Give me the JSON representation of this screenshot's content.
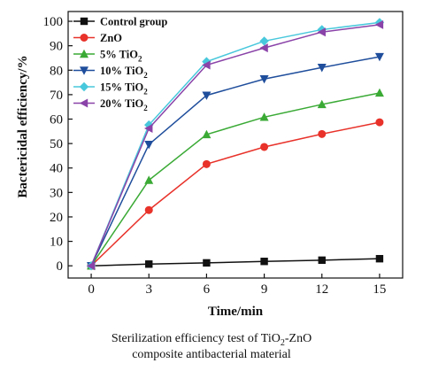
{
  "chart_data": {
    "type": "line",
    "xlabel": "Time/min",
    "ylabel": "Bactericidal efficiency/%",
    "xlim": [
      -1.2,
      16.2
    ],
    "ylim": [
      -5,
      104
    ],
    "xticks": [
      0,
      3,
      6,
      9,
      12,
      15
    ],
    "yticks": [
      0,
      10,
      20,
      30,
      40,
      50,
      60,
      70,
      80,
      90,
      100
    ],
    "grid": false,
    "legend": "top-left",
    "x": [
      0,
      3,
      6,
      9,
      12,
      15
    ],
    "series": [
      {
        "name": "Control group",
        "color": "#111111",
        "marker": "square",
        "values": [
          0,
          0.7,
          1.2,
          1.8,
          2.3,
          2.9
        ]
      },
      {
        "name": "ZnO",
        "color": "#e8322a",
        "marker": "circle",
        "values": [
          0,
          22.8,
          41.6,
          48.6,
          53.9,
          58.7
        ]
      },
      {
        "name": "5% TiO",
        "name_sub": "2",
        "color": "#3aaa35",
        "marker": "triangle-up",
        "values": [
          0,
          35,
          53.7,
          60.8,
          66,
          70.7
        ]
      },
      {
        "name": "10% TiO",
        "name_sub": "2",
        "color": "#1f4e9c",
        "marker": "triangle-down",
        "values": [
          0,
          49.6,
          69.7,
          76.4,
          81.1,
          85.5
        ]
      },
      {
        "name": "15% TiO",
        "name_sub": "2",
        "color": "#48c8dc",
        "marker": "diamond",
        "values": [
          0,
          57.6,
          83.5,
          91.9,
          96.6,
          99.5
        ]
      },
      {
        "name": "20% TiO",
        "name_sub": "2",
        "color": "#8a43a8",
        "marker": "triangle-left",
        "values": [
          0,
          56.2,
          82.1,
          89.1,
          95.6,
          98.6
        ]
      }
    ]
  },
  "caption": {
    "line1_pre": "Sterilization efficiency test of TiO",
    "line1_sub": "2",
    "line1_post": "-ZnO",
    "line2": "composite antibacterial material"
  }
}
